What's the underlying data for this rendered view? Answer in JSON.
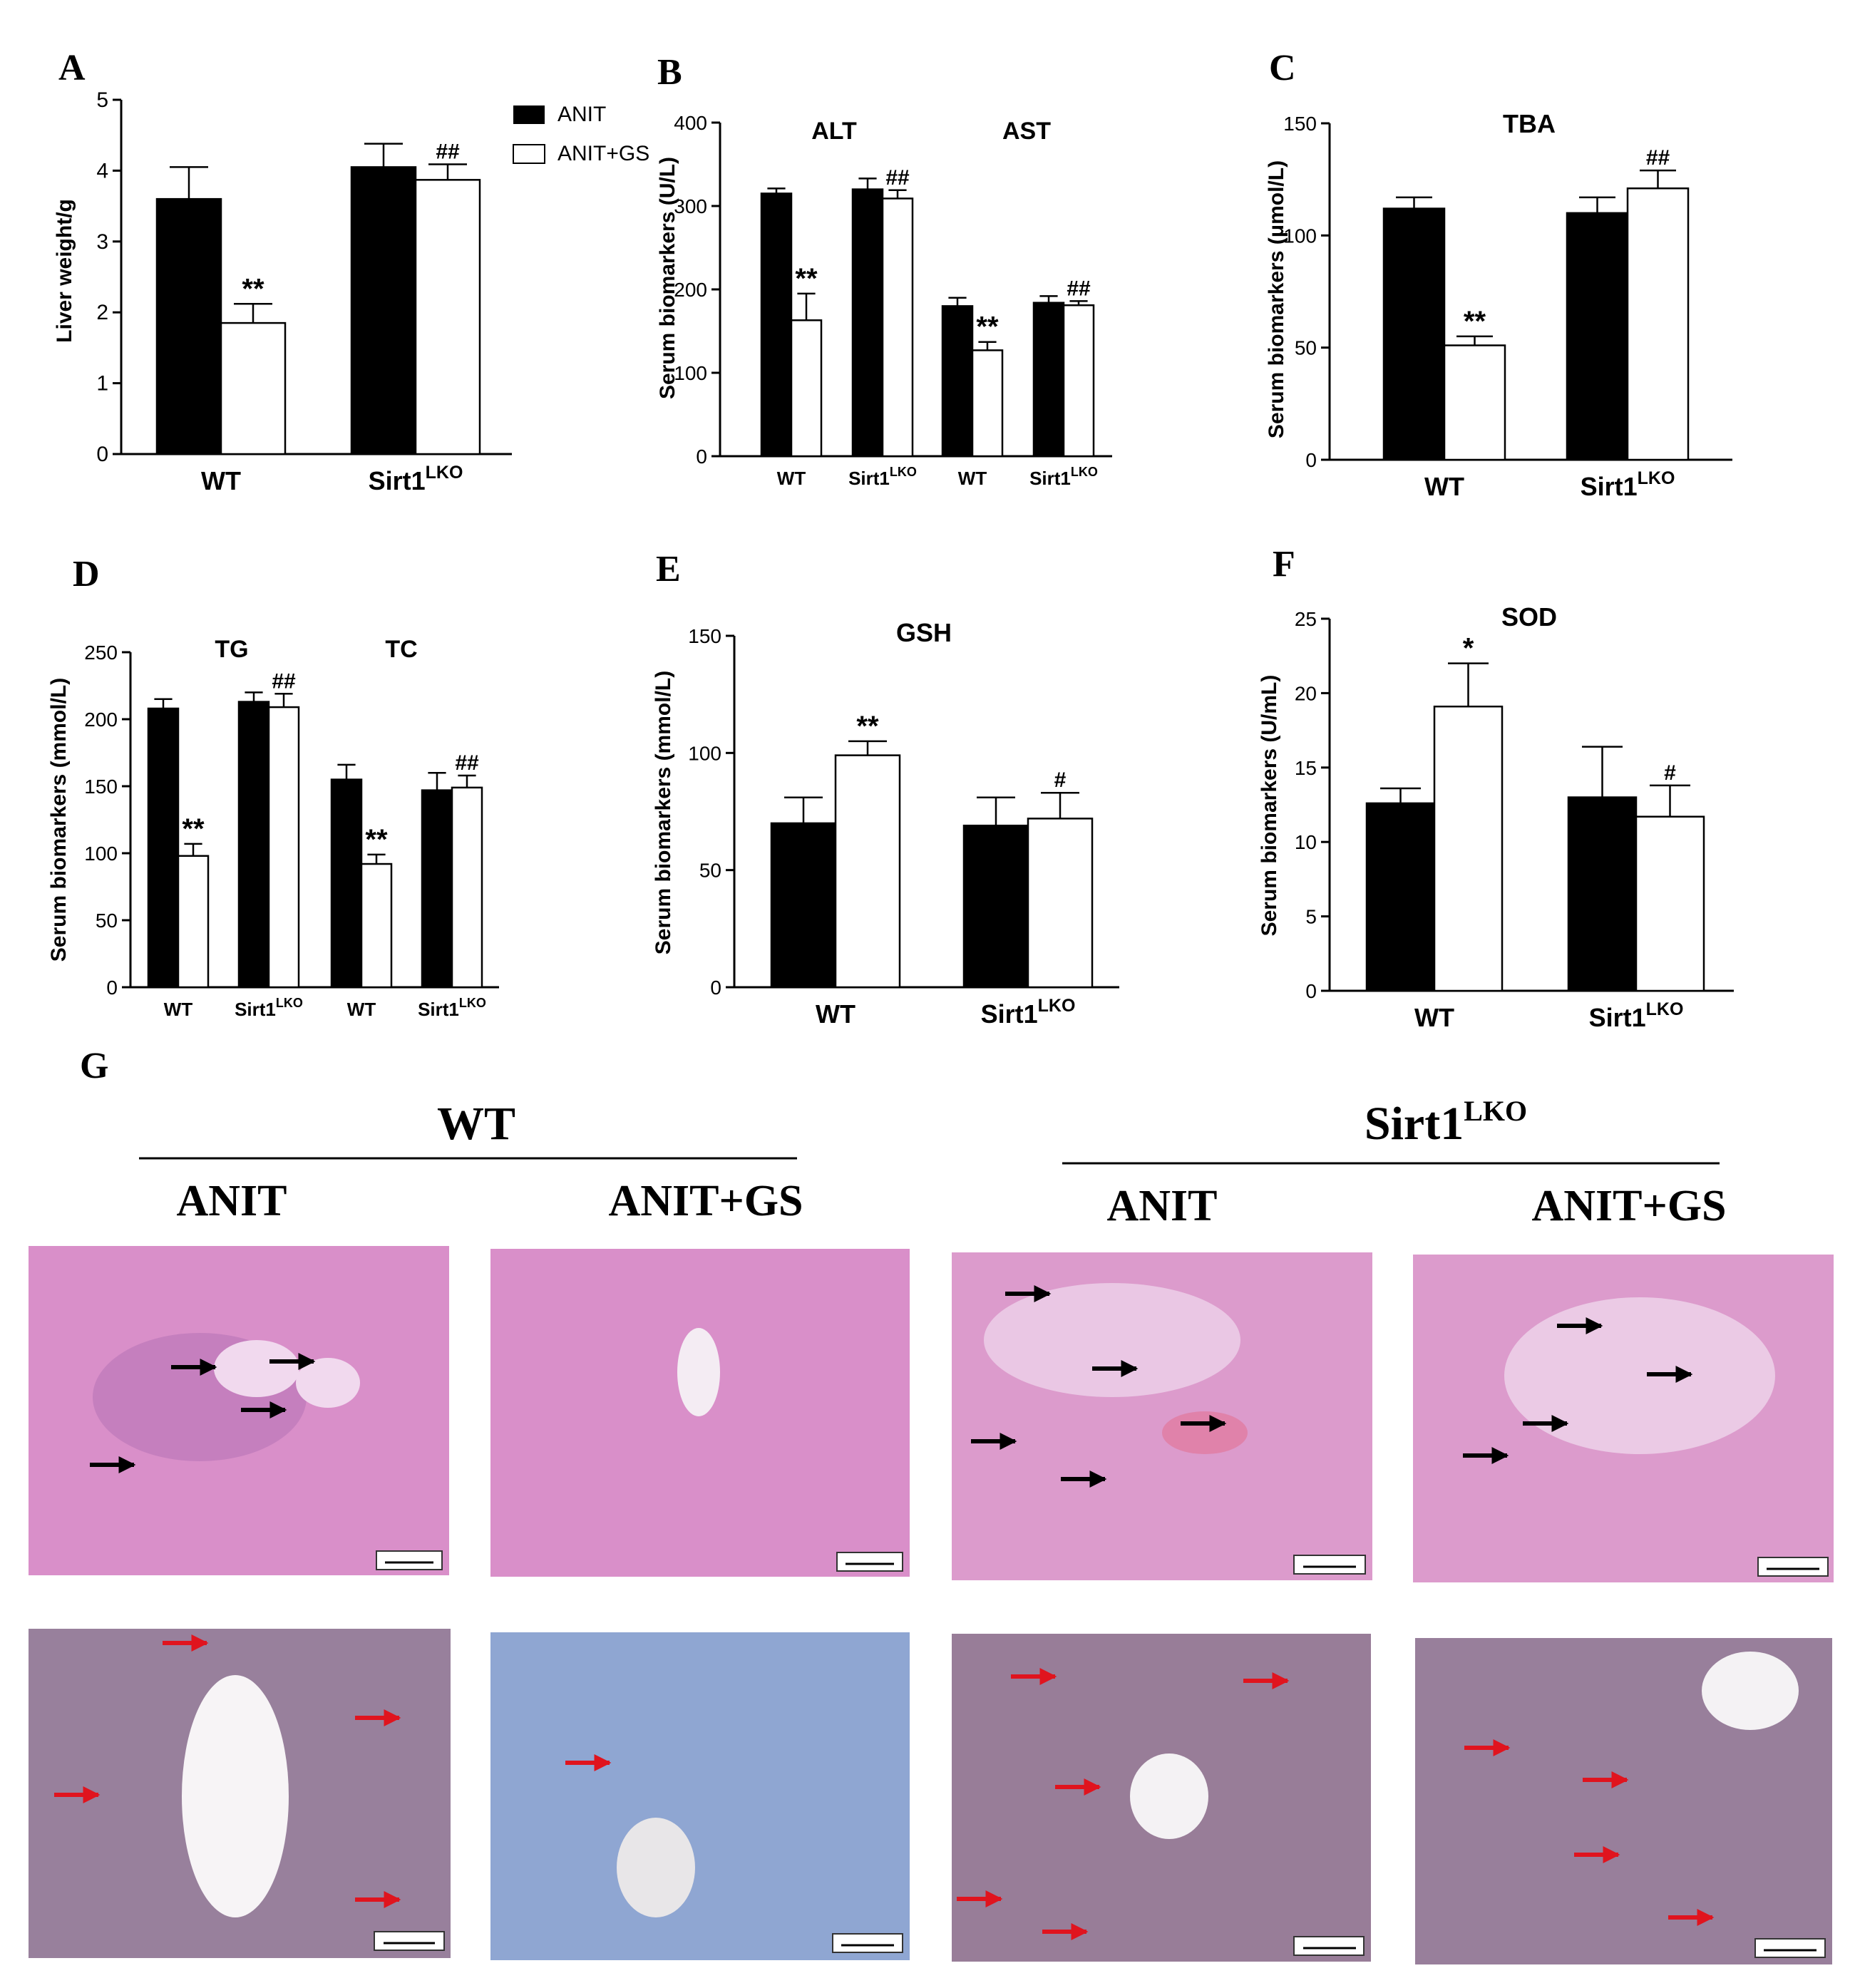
{
  "figure": {
    "legend": {
      "entries": [
        {
          "label": "ANIT",
          "color": "#000000"
        },
        {
          "label": "ANIT+GS",
          "color": "#ffffff"
        }
      ]
    },
    "histology": {
      "panel_letter": "G",
      "genotype_wt": "WT",
      "genotype_ko_base": "Sirt1",
      "genotype_ko_sup": "LKO",
      "column_labels": [
        "ANIT",
        "ANIT+GS",
        "ANIT",
        "ANIT+GS"
      ],
      "he_background": "#d98fc9",
      "oro_background": "#8fa6d2"
    }
  },
  "chart_data": [
    {
      "panel": "A",
      "type": "bar",
      "title": "",
      "xlabel": "",
      "ylabel": "Liver weight/g",
      "ylim": [
        0,
        5
      ],
      "yticks": [
        "0",
        "1",
        "2",
        "3",
        "4",
        "5"
      ],
      "groups": [
        {
          "label": "WT",
          "label_sup": "",
          "title": "",
          "bars": [
            {
              "series": "ANIT",
              "value": 3.6,
              "error": 0.45,
              "mark": ""
            },
            {
              "series": "ANIT+GS",
              "value": 1.85,
              "error": 0.27,
              "mark": "**"
            }
          ]
        },
        {
          "label": "Sirt1",
          "label_sup": "LKO",
          "title": "",
          "bars": [
            {
              "series": "ANIT",
              "value": 4.05,
              "error": 0.33,
              "mark": ""
            },
            {
              "series": "ANIT+GS",
              "value": 3.87,
              "error": 0.22,
              "mark": "##"
            }
          ]
        }
      ]
    },
    {
      "panel": "B",
      "type": "bar",
      "title": "",
      "xlabel": "",
      "ylabel": "Serum biomarkers (U/L)",
      "ylim": [
        0,
        400
      ],
      "yticks": [
        "0",
        "100",
        "200",
        "300",
        "400"
      ],
      "groups": [
        {
          "label": "WT",
          "label_sup": "",
          "title": "ALT",
          "bars": [
            {
              "series": "ANIT",
              "value": 315,
              "error": 6,
              "mark": ""
            },
            {
              "series": "ANIT+GS",
              "value": 163,
              "error": 32,
              "mark": "**"
            }
          ]
        },
        {
          "label": "Sirt1",
          "label_sup": "LKO",
          "title": "",
          "bars": [
            {
              "series": "ANIT",
              "value": 320,
              "error": 13,
              "mark": ""
            },
            {
              "series": "ANIT+GS",
              "value": 309,
              "error": 10,
              "mark": "##"
            }
          ]
        },
        {
          "label": "WT",
          "label_sup": "",
          "title": "AST",
          "bars": [
            {
              "series": "ANIT",
              "value": 180,
              "error": 10,
              "mark": ""
            },
            {
              "series": "ANIT+GS",
              "value": 127,
              "error": 10,
              "mark": "**"
            }
          ]
        },
        {
          "label": "Sirt1",
          "label_sup": "LKO",
          "title": "",
          "bars": [
            {
              "series": "ANIT",
              "value": 184,
              "error": 8,
              "mark": ""
            },
            {
              "series": "ANIT+GS",
              "value": 181,
              "error": 5,
              "mark": "##"
            }
          ]
        }
      ]
    },
    {
      "panel": "C",
      "type": "bar",
      "title": "TBA",
      "xlabel": "",
      "ylabel": "Serum biomarkers (μmol/L)",
      "ylim": [
        0,
        150
      ],
      "yticks": [
        "0",
        "50",
        "100",
        "150"
      ],
      "groups": [
        {
          "label": "WT",
          "label_sup": "",
          "title": "",
          "bars": [
            {
              "series": "ANIT",
              "value": 112,
              "error": 5,
              "mark": ""
            },
            {
              "series": "ANIT+GS",
              "value": 51,
              "error": 4,
              "mark": "**"
            }
          ]
        },
        {
          "label": "Sirt1",
          "label_sup": "LKO",
          "title": "",
          "bars": [
            {
              "series": "ANIT",
              "value": 110,
              "error": 7,
              "mark": ""
            },
            {
              "series": "ANIT+GS",
              "value": 121,
              "error": 8,
              "mark": "##"
            }
          ]
        }
      ]
    },
    {
      "panel": "D",
      "type": "bar",
      "title": "",
      "xlabel": "",
      "ylabel": "Serum biomarkers (mmol/L)",
      "ylim": [
        0,
        250
      ],
      "yticks": [
        "0",
        "50",
        "100",
        "150",
        "200",
        "250"
      ],
      "groups": [
        {
          "label": "WT",
          "label_sup": "",
          "title": "TG",
          "bars": [
            {
              "series": "ANIT",
              "value": 208,
              "error": 7,
              "mark": ""
            },
            {
              "series": "ANIT+GS",
              "value": 98,
              "error": 9,
              "mark": "**"
            }
          ]
        },
        {
          "label": "Sirt1",
          "label_sup": "LKO",
          "title": "",
          "bars": [
            {
              "series": "ANIT",
              "value": 213,
              "error": 7,
              "mark": ""
            },
            {
              "series": "ANIT+GS",
              "value": 209,
              "error": 10,
              "mark": "##"
            }
          ]
        },
        {
          "label": "WT",
          "label_sup": "",
          "title": "TC",
          "bars": [
            {
              "series": "ANIT",
              "value": 155,
              "error": 11,
              "mark": ""
            },
            {
              "series": "ANIT+GS",
              "value": 92,
              "error": 7,
              "mark": "**"
            }
          ]
        },
        {
          "label": "Sirt1",
          "label_sup": "LKO",
          "title": "",
          "bars": [
            {
              "series": "ANIT",
              "value": 147,
              "error": 13,
              "mark": ""
            },
            {
              "series": "ANIT+GS",
              "value": 149,
              "error": 9,
              "mark": "##"
            }
          ]
        }
      ]
    },
    {
      "panel": "E",
      "type": "bar",
      "title": "GSH",
      "xlabel": "",
      "ylabel": "Serum biomarkers (mmol/L)",
      "ylim": [
        0,
        150
      ],
      "yticks": [
        "0",
        "50",
        "100",
        "150"
      ],
      "groups": [
        {
          "label": "WT",
          "label_sup": "",
          "title": "",
          "bars": [
            {
              "series": "ANIT",
              "value": 70,
              "error": 11,
              "mark": ""
            },
            {
              "series": "ANIT+GS",
              "value": 99,
              "error": 6,
              "mark": "**"
            }
          ]
        },
        {
          "label": "Sirt1",
          "label_sup": "LKO",
          "title": "",
          "bars": [
            {
              "series": "ANIT",
              "value": 69,
              "error": 12,
              "mark": ""
            },
            {
              "series": "ANIT+GS",
              "value": 72,
              "error": 11,
              "mark": "#"
            }
          ]
        }
      ]
    },
    {
      "panel": "F",
      "type": "bar",
      "title": "SOD",
      "xlabel": "",
      "ylabel": "Serum biomarkers (U/mL)",
      "ylim": [
        0,
        25
      ],
      "yticks": [
        "0",
        "5",
        "10",
        "15",
        "20",
        "25"
      ],
      "groups": [
        {
          "label": "WT",
          "label_sup": "",
          "title": "",
          "bars": [
            {
              "series": "ANIT",
              "value": 12.6,
              "error": 1.0,
              "mark": ""
            },
            {
              "series": "ANIT+GS",
              "value": 19.1,
              "error": 2.9,
              "mark": "*"
            }
          ]
        },
        {
          "label": "Sirt1",
          "label_sup": "LKO",
          "title": "",
          "bars": [
            {
              "series": "ANIT",
              "value": 13.0,
              "error": 3.4,
              "mark": ""
            },
            {
              "series": "ANIT+GS",
              "value": 11.7,
              "error": 2.1,
              "mark": "#"
            }
          ]
        }
      ]
    }
  ]
}
